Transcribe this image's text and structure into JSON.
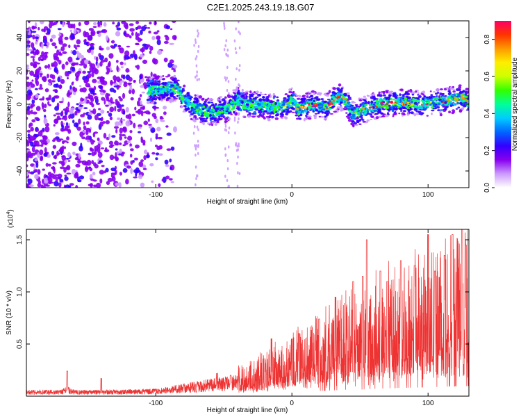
{
  "title": "C2E1.2025.243.19.18.G07",
  "chart_data": [
    {
      "type": "heatmap",
      "name": "spectrogram",
      "xlabel": "Height of straight line (km)",
      "ylabel": "Frequency (Hz)",
      "xlim": [
        -195,
        130
      ],
      "ylim": [
        -50,
        50
      ],
      "x_ticks": [
        -100,
        0,
        100
      ],
      "x_tick_labels": [
        "-100",
        "0",
        "100"
      ],
      "y_ticks": [
        -40,
        -20,
        0,
        20,
        40
      ],
      "y_tick_labels": [
        "-40",
        "-20",
        "0",
        "20",
        "40"
      ],
      "ridge_x": [
        -105,
        -95,
        -85,
        -78,
        -72,
        -65,
        -58,
        -50,
        -45,
        -40,
        -35,
        -25,
        -15,
        -5,
        0,
        5,
        15,
        25,
        35,
        40,
        45,
        55,
        65,
        80,
        95,
        105,
        115,
        125,
        130
      ],
      "ridge_y": [
        8,
        9,
        10,
        2,
        -2,
        -4,
        -5,
        -3,
        -2,
        3,
        0,
        0,
        -2,
        -1,
        2,
        -3,
        0,
        -2,
        5,
        2,
        -6,
        -3,
        0,
        1,
        0,
        1,
        2,
        4,
        1
      ],
      "colorbar": {
        "label": "Normalized spectral amplitude",
        "range": [
          0,
          0.9
        ],
        "ticks": [
          0.0,
          0.2,
          0.4,
          0.6,
          0.8
        ],
        "tick_labels": [
          "0.0",
          "0.2",
          "0.4",
          "0.6",
          "0.8"
        ],
        "colors": [
          "#ffffff",
          "#cc99ff",
          "#8800ee",
          "#3300ff",
          "#0066ff",
          "#00ccff",
          "#00ff99",
          "#33ff00",
          "#ccff00",
          "#ffee00",
          "#ff9900",
          "#ff3300",
          "#ff0066"
        ]
      }
    },
    {
      "type": "line",
      "name": "snr",
      "xlabel": "Height of straight line (km)",
      "ylabel": "SNR (10 * v/v)",
      "multiplier": "(x10",
      "multiplier_exp": "4",
      "multiplier_close": ")",
      "xlim": [
        -195,
        130
      ],
      "ylim": [
        0,
        1.6
      ],
      "x_ticks": [
        -100,
        0,
        100
      ],
      "x_tick_labels": [
        "-100",
        "0",
        "100"
      ],
      "y_ticks": [
        0.5,
        1.0,
        1.5
      ],
      "y_tick_labels": [
        "0.5",
        "1.0",
        "1.5"
      ],
      "series_color": "#ee3333",
      "envelope_x": [
        -195,
        -170,
        -165,
        -160,
        -140,
        -100,
        -80,
        -60,
        -40,
        -25,
        -15,
        0,
        20,
        30,
        40,
        50,
        60,
        70,
        80,
        90,
        100,
        110,
        120,
        130
      ],
      "envelope_y": [
        0.05,
        0.05,
        0.08,
        0.05,
        0.05,
        0.06,
        0.1,
        0.14,
        0.17,
        0.23,
        0.3,
        0.37,
        0.5,
        0.55,
        0.62,
        0.62,
        0.7,
        0.75,
        0.8,
        0.82,
        0.85,
        0.9,
        0.95,
        1.0
      ],
      "peaks_x": [
        -165,
        -140,
        -55,
        -45,
        -15,
        0,
        5,
        20,
        32,
        45,
        52,
        55,
        65,
        70,
        80,
        90,
        98,
        100,
        105,
        112,
        118,
        125,
        128
      ],
      "peaks_y": [
        0.24,
        0.17,
        0.22,
        0.2,
        0.55,
        0.55,
        0.6,
        0.74,
        0.95,
        1.1,
        1.15,
        1.5,
        1.2,
        1.1,
        1.3,
        1.25,
        1.05,
        1.55,
        1.2,
        1.35,
        1.55,
        1.6,
        1.45
      ]
    }
  ]
}
